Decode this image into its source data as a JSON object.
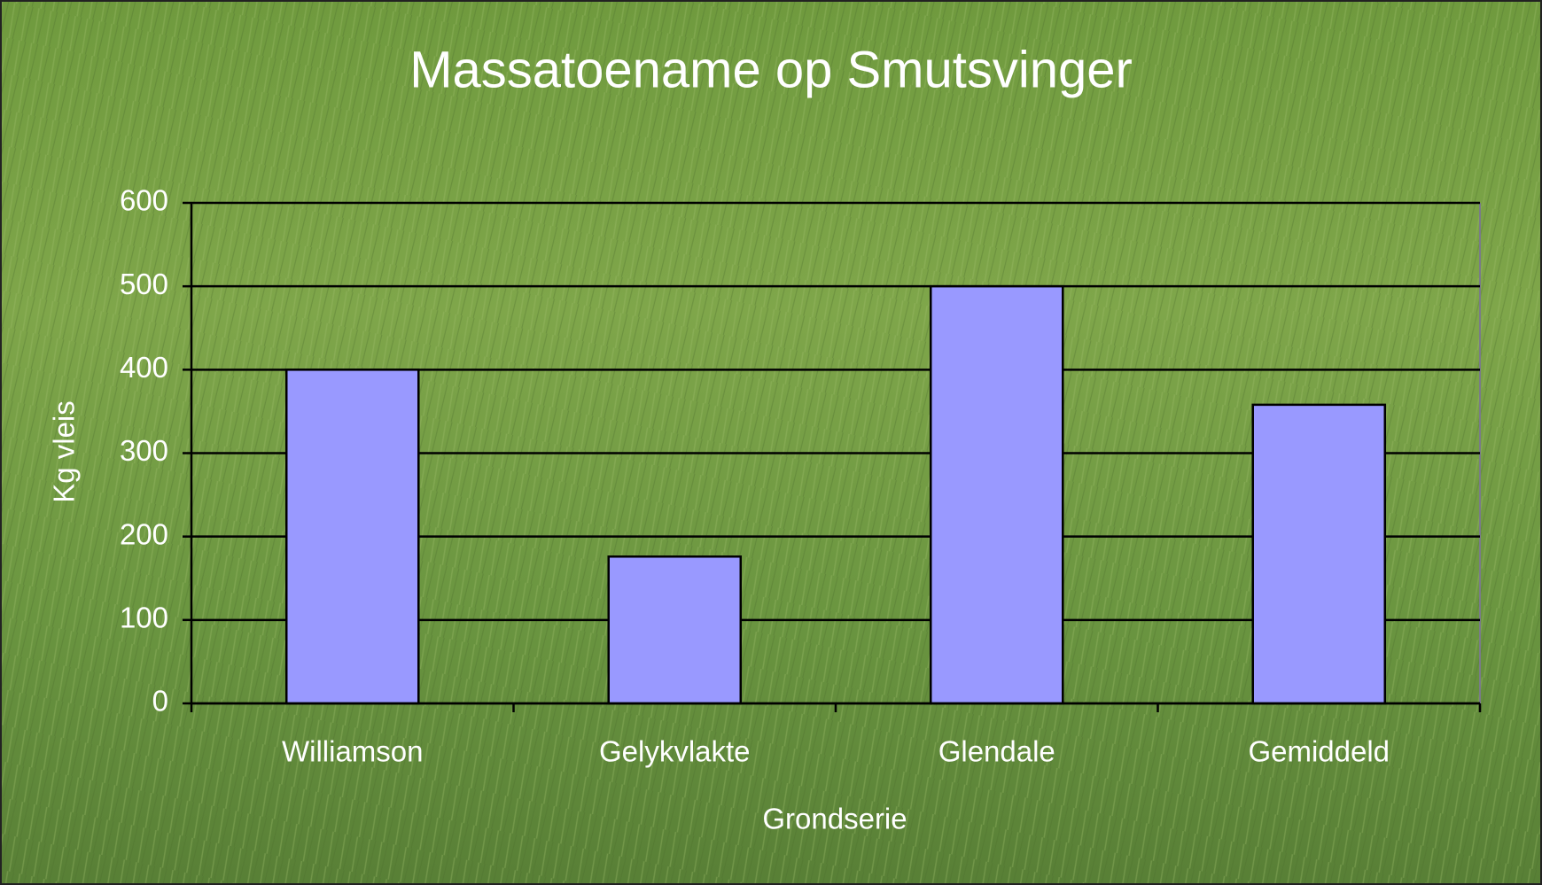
{
  "chart_data": {
    "type": "bar",
    "title": "Massatoename op Smutsvinger",
    "y_label": "Kg vleis",
    "x_label": "Grondserie",
    "categories": [
      "Williamson",
      "Gelykvlakte",
      "Glendale",
      "Gemiddeld"
    ],
    "values": [
      400,
      176,
      500,
      358
    ],
    "color": "#9999ff",
    "ylim": [
      0,
      600
    ],
    "yticks": [
      0,
      100,
      200,
      300,
      400,
      500,
      600
    ],
    "grid": true
  }
}
